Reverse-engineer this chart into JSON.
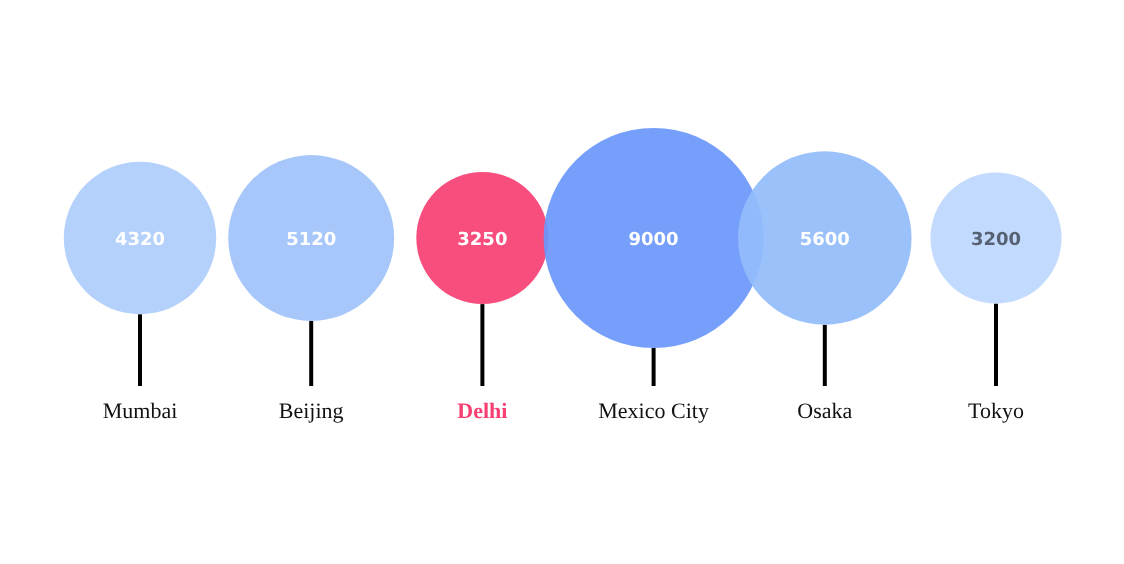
{
  "chart_data": {
    "type": "other",
    "categories": [
      "Mumbai",
      "Beijing",
      "Delhi",
      "Mexico City",
      "Osaka",
      "Tokyo"
    ],
    "values": [
      4320,
      5120,
      3250,
      9000,
      5600,
      3200
    ],
    "colors": [
      "#aecdfb",
      "#a0c2fa",
      "#f73f72",
      "#6a97fb",
      "#93bcfb",
      "#bdd7fd"
    ],
    "data_labels": true
  }
}
